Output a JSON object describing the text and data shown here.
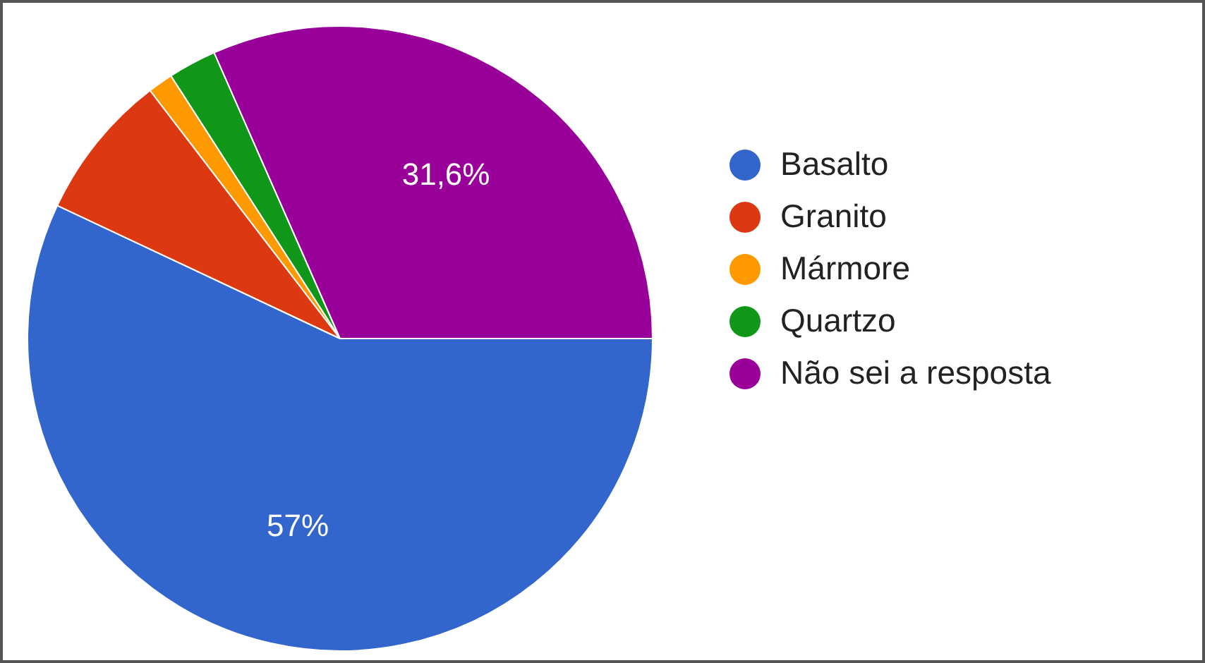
{
  "chart_data": {
    "type": "pie",
    "categories": [
      "Basalto",
      "Granito",
      "Mármore",
      "Quartzo",
      "Não sei a resposta"
    ],
    "values": [
      57,
      7.6,
      1.3,
      2.5,
      31.6
    ],
    "colors": [
      "#3366cc",
      "#dc3912",
      "#ff9900",
      "#109618",
      "#990099"
    ],
    "value_labels": [
      "57%",
      null,
      null,
      null,
      "31,6%"
    ],
    "legend": "right"
  }
}
